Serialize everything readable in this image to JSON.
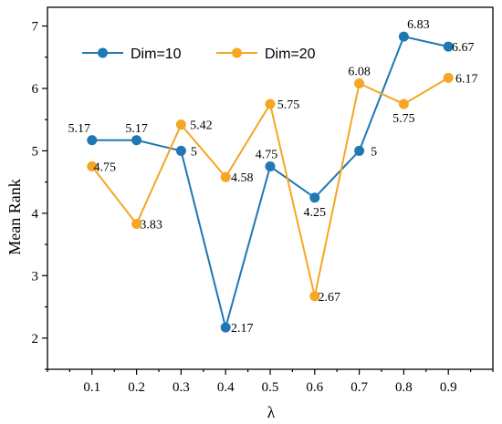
{
  "chart_data": {
    "type": "line",
    "xlabel": "λ",
    "ylabel": "Mean Rank",
    "x": [
      0.1,
      0.2,
      0.3,
      0.4,
      0.5,
      0.6,
      0.7,
      0.8,
      0.9
    ],
    "x_tick_labels": [
      "0.1",
      "0.2",
      "0.3",
      "0.4",
      "0.5",
      "0.6",
      "0.7",
      "0.8",
      "0.9"
    ],
    "xlim": [
      0,
      1.0
    ],
    "ylim": [
      1.5,
      7.3
    ],
    "y_ticks": [
      2,
      3,
      4,
      5,
      6,
      7
    ],
    "grid": false,
    "legend_position": "top-left",
    "series": [
      {
        "name": "Dim=10",
        "color": "#1f77b4",
        "values": [
          5.17,
          5.17,
          5.0,
          2.17,
          4.75,
          4.25,
          5.0,
          6.83,
          6.67
        ],
        "labels": [
          "5.17",
          "5.17",
          "5",
          "2.17",
          "4.75",
          "4.25",
          "5",
          "6.83",
          "6.67"
        ]
      },
      {
        "name": "Dim=20",
        "color": "#f5a623",
        "values": [
          4.75,
          3.83,
          5.42,
          4.58,
          5.75,
          2.67,
          6.08,
          5.75,
          6.17
        ],
        "labels": [
          "4.75",
          "3.83",
          "5.42",
          "4.58",
          "5.75",
          "2.67",
          "6.08",
          "5.75",
          "6.17"
        ]
      }
    ]
  }
}
